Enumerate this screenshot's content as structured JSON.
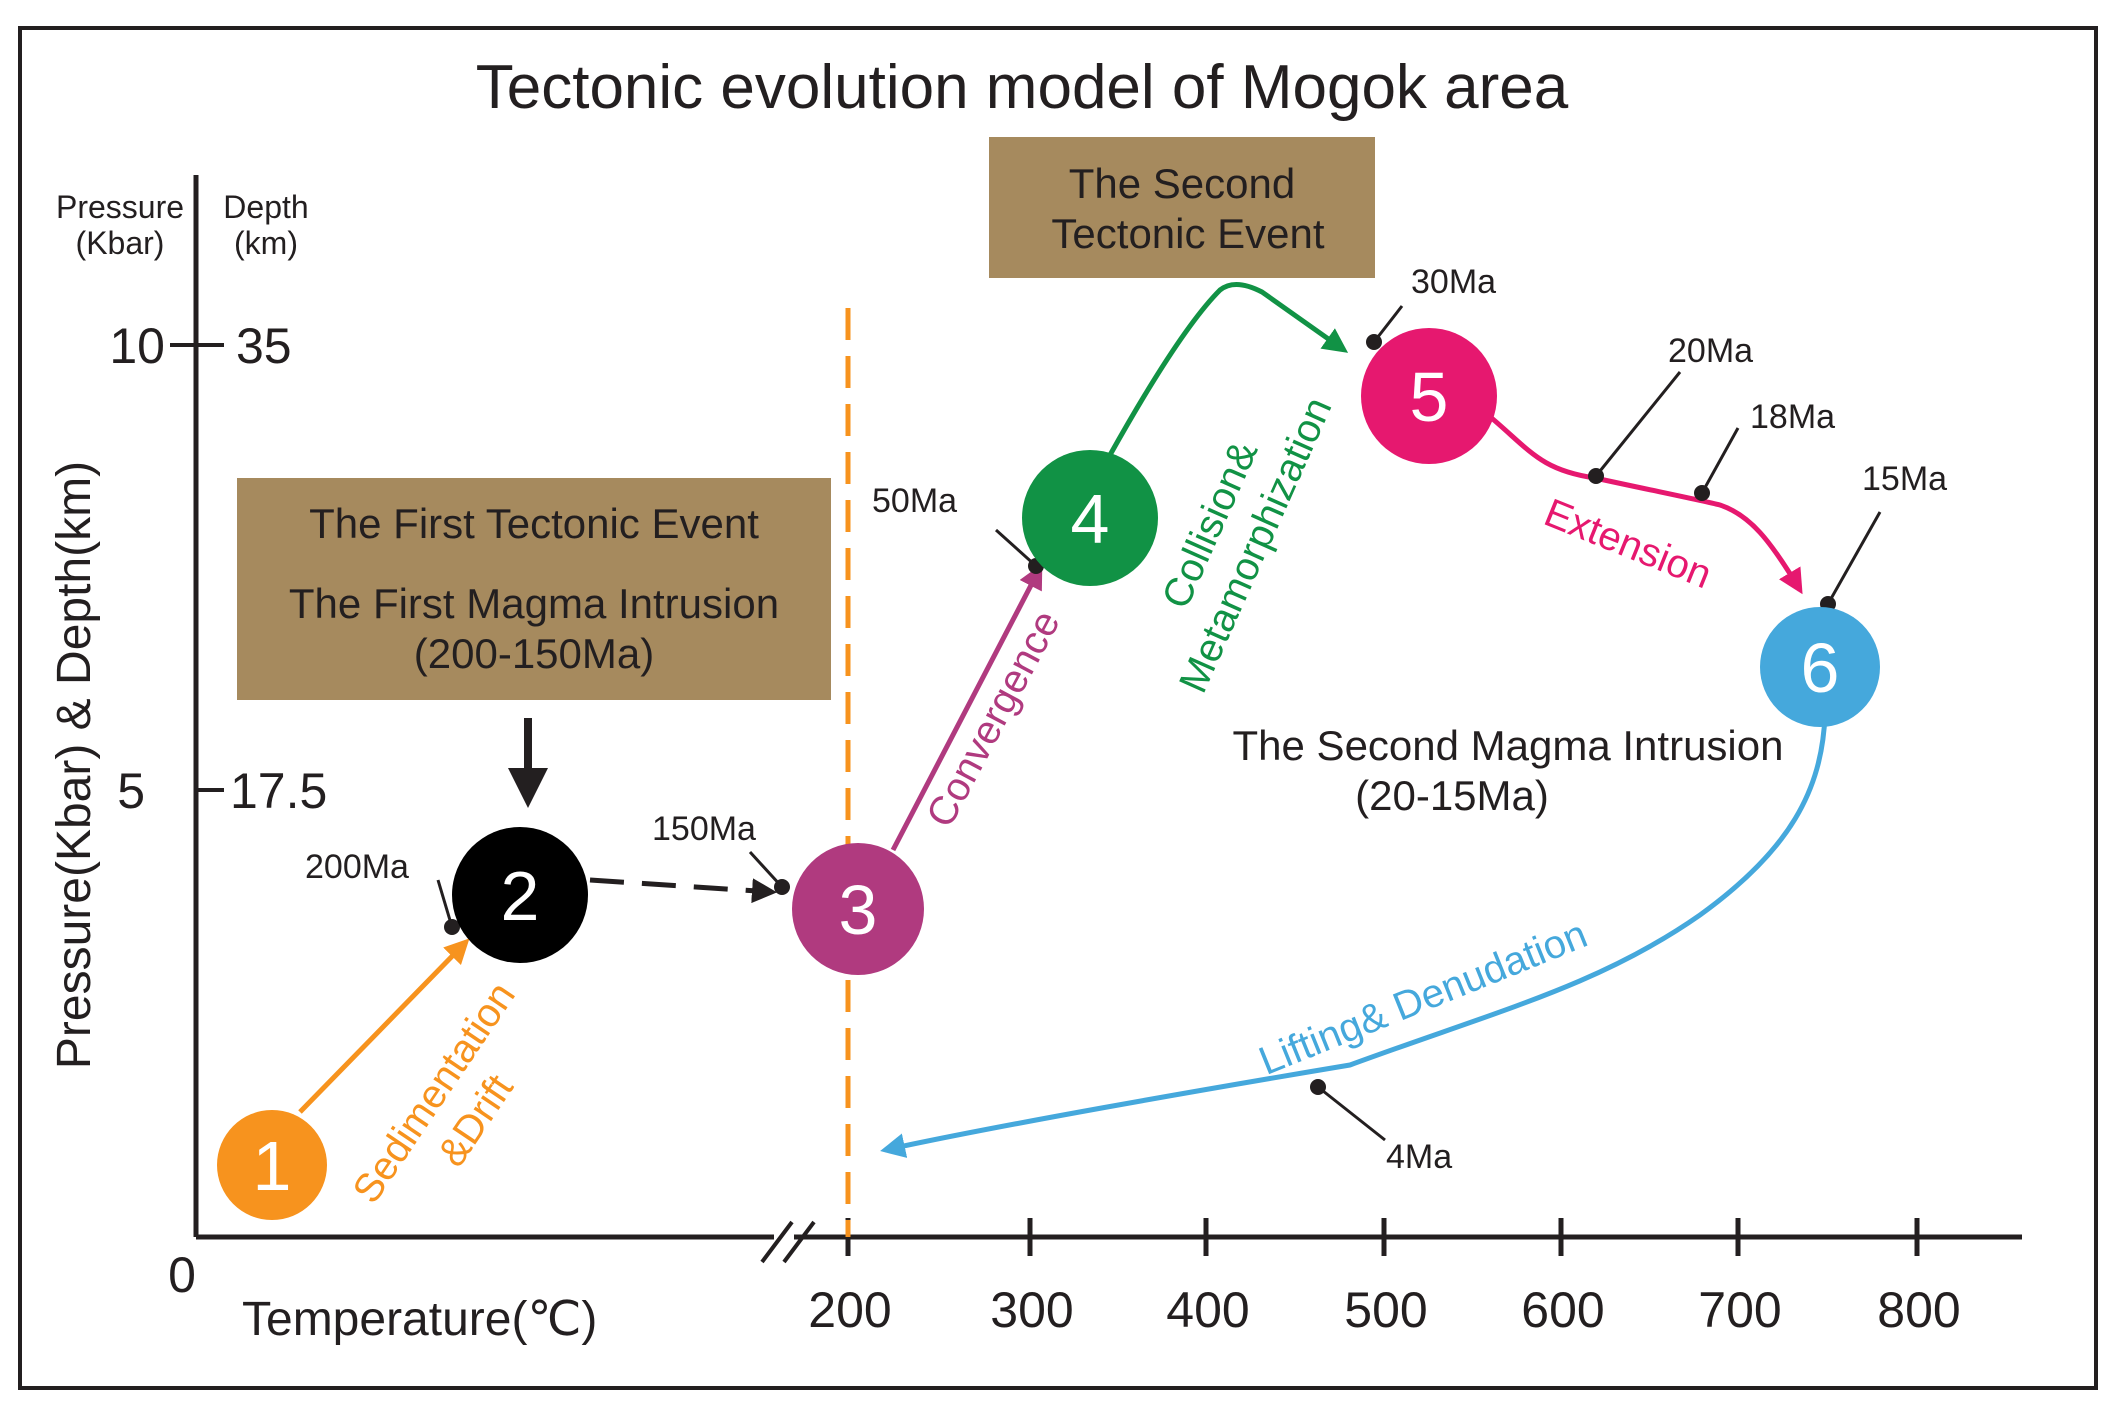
{
  "title": "Tectonic evolution model of Mogok area",
  "axes": {
    "pressure_header": [
      "Pressure",
      "(Kbar)"
    ],
    "depth_header": [
      "Depth",
      "(km)"
    ],
    "y_label": "Pressure(Kbar) & Depth(km)",
    "x_label": "Temperature(℃)",
    "y_ticks": [
      {
        "pressure": "10",
        "depth": "35"
      },
      {
        "pressure": "5",
        "depth": "17.5"
      }
    ],
    "origin": "0",
    "x_ticks": [
      "200",
      "300",
      "400",
      "500",
      "600",
      "700",
      "800"
    ]
  },
  "boxes": {
    "first_event": {
      "lines": [
        "The First Tectonic Event",
        "The First Magma Intrusion",
        "(200-150Ma)"
      ],
      "color": "#a68a5e"
    },
    "second_event": {
      "lines": [
        "The Second",
        "Tectonic Event"
      ],
      "color": "#a68a5e"
    }
  },
  "second_magma": {
    "lines": [
      "The Second Magma Intrusion",
      "(20-15Ma)"
    ],
    "color": "#a68a5e"
  },
  "nodes": [
    {
      "label": "1",
      "color": "#f7931e"
    },
    {
      "label": "2",
      "color": "#000000"
    },
    {
      "label": "3",
      "color": "#b03a7f"
    },
    {
      "label": "4",
      "color": "#119245"
    },
    {
      "label": "5",
      "color": "#e6186f"
    },
    {
      "label": "6",
      "color": "#45a8dc"
    }
  ],
  "ages": [
    "200Ma",
    "150Ma",
    "50Ma",
    "30Ma",
    "20Ma",
    "18Ma",
    "15Ma",
    "4Ma"
  ],
  "processes": {
    "sedimentation": {
      "lines": [
        "Sedimentation",
        "&Drift"
      ],
      "color": "#f7931e"
    },
    "convergence": {
      "text": "Convergence",
      "color": "#b03a7f"
    },
    "collision": {
      "lines": [
        "Collision&",
        "Metamorphization"
      ],
      "color": "#119245"
    },
    "extension": {
      "text": "Extension",
      "color": "#e6186f"
    },
    "lifting": {
      "text": "Lifting& Denudation",
      "color": "#45a8dc"
    }
  },
  "colors": {
    "divider": "#f7931e",
    "axis": "#231f20",
    "frame": "#231f20"
  }
}
